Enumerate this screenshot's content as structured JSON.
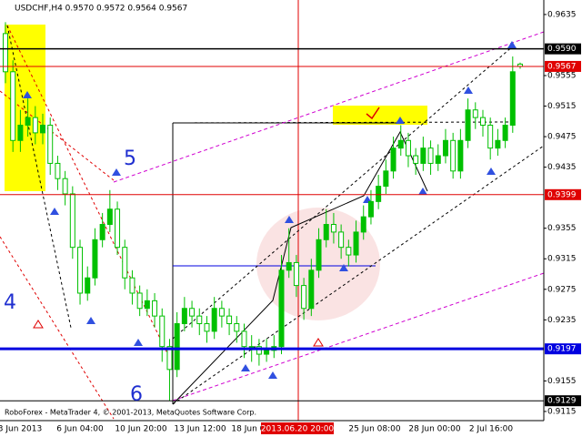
{
  "chart_data": {
    "type": "candlestick",
    "title": "USDCHF,H4  0.9570 0.9572 0.9564 0.9567",
    "footer": "RoboForex - MetaTrader 4, © 2001-2013, MetaQuotes Software Corp.",
    "annotations": [
      "5",
      "4",
      "6"
    ],
    "x_labels": [
      "3 Jun 2013",
      "6 Jun 04:00",
      "10 Jun 20:00",
      "13 Jun 12:00",
      "18 Jun 04:00",
      "2013.06.20 20:00",
      "25 Jun 08:00",
      "28 Jun 00:00",
      "2 Jul 16:00"
    ],
    "highlighted_x_label": 5,
    "open": [
      0.961,
      0.956,
      0.947,
      0.949,
      0.95,
      0.948,
      0.949,
      0.944,
      0.942,
      0.94,
      0.933,
      0.927,
      0.929,
      0.934,
      0.936,
      0.938,
      0.933,
      0.929,
      0.927,
      0.925,
      0.926,
      0.924,
      0.92,
      0.917,
      0.923,
      0.925,
      0.924,
      0.923,
      0.922,
      0.925,
      0.924,
      0.923,
      0.922,
      0.92,
      0.92,
      0.919,
      0.9195,
      0.92,
      0.93,
      0.931,
      0.928,
      0.925,
      0.93,
      0.934,
      0.936,
      0.935,
      0.933,
      0.932,
      0.935,
      0.937,
      0.939,
      0.941,
      0.943,
      0.946,
      0.947,
      0.945,
      0.944,
      0.946,
      0.944,
      0.945,
      0.947,
      0.943,
      0.947,
      0.951,
      0.95,
      0.949,
      0.946,
      0.947,
      0.949,
      0.957
    ],
    "high": [
      0.9625,
      0.9575,
      0.951,
      0.9525,
      0.9515,
      0.9505,
      0.95,
      0.945,
      0.943,
      0.941,
      0.934,
      0.9305,
      0.9355,
      0.9375,
      0.9405,
      0.939,
      0.934,
      0.93,
      0.928,
      0.9275,
      0.927,
      0.925,
      0.921,
      0.9245,
      0.9265,
      0.926,
      0.925,
      0.924,
      0.9265,
      0.926,
      0.925,
      0.924,
      0.923,
      0.9215,
      0.921,
      0.921,
      0.9215,
      0.932,
      0.9355,
      0.932,
      0.929,
      0.9315,
      0.9355,
      0.938,
      0.9375,
      0.936,
      0.934,
      0.9365,
      0.9385,
      0.9405,
      0.9425,
      0.9445,
      0.9475,
      0.949,
      0.948,
      0.946,
      0.9475,
      0.947,
      0.9465,
      0.9485,
      0.948,
      0.9485,
      0.9525,
      0.952,
      0.951,
      0.95,
      0.9485,
      0.95,
      0.958,
      0.9572
    ],
    "low": [
      0.9545,
      0.9455,
      0.9455,
      0.9475,
      0.9465,
      0.9465,
      0.9425,
      0.9405,
      0.9385,
      0.9315,
      0.9255,
      0.926,
      0.928,
      0.933,
      0.935,
      0.932,
      0.9275,
      0.9255,
      0.924,
      0.924,
      0.9225,
      0.918,
      0.9129,
      0.916,
      0.922,
      0.9225,
      0.9215,
      0.9205,
      0.921,
      0.9225,
      0.9215,
      0.9205,
      0.9185,
      0.918,
      0.9175,
      0.918,
      0.9185,
      0.919,
      0.929,
      0.9265,
      0.9235,
      0.924,
      0.929,
      0.933,
      0.9335,
      0.9315,
      0.9305,
      0.931,
      0.934,
      0.936,
      0.938,
      0.94,
      0.942,
      0.945,
      0.9435,
      0.9425,
      0.943,
      0.9425,
      0.943,
      0.944,
      0.942,
      0.942,
      0.946,
      0.9485,
      0.9475,
      0.9445,
      0.945,
      0.946,
      0.948,
      0.9564
    ],
    "close": [
      0.956,
      0.947,
      0.949,
      0.95,
      0.948,
      0.949,
      0.944,
      0.942,
      0.94,
      0.933,
      0.927,
      0.929,
      0.934,
      0.936,
      0.938,
      0.933,
      0.929,
      0.927,
      0.925,
      0.926,
      0.924,
      0.92,
      0.917,
      0.923,
      0.925,
      0.924,
      0.923,
      0.922,
      0.925,
      0.924,
      0.923,
      0.922,
      0.92,
      0.92,
      0.919,
      0.9195,
      0.92,
      0.93,
      0.931,
      0.928,
      0.925,
      0.93,
      0.934,
      0.936,
      0.935,
      0.933,
      0.932,
      0.935,
      0.937,
      0.939,
      0.941,
      0.943,
      0.946,
      0.947,
      0.945,
      0.944,
      0.946,
      0.944,
      0.945,
      0.947,
      0.943,
      0.947,
      0.951,
      0.95,
      0.949,
      0.946,
      0.947,
      0.949,
      0.956,
      0.9567
    ],
    "up_color": "#00c000",
    "down_color": "#ffffff",
    "wick_color": "#00c000",
    "ylim": [
      0.9103,
      0.9654
    ],
    "yticks": [
      0.9635,
      0.9555,
      0.9515,
      0.9475,
      0.9435,
      0.9355,
      0.9315,
      0.9275,
      0.9235,
      0.9155,
      0.9115
    ],
    "price_lines": [
      {
        "value": 0.959,
        "label": "0.9590",
        "color": "#000000",
        "width": 1.5
      },
      {
        "value": 0.9567,
        "label": "0.9567",
        "color": "#e00000",
        "width": 1
      },
      {
        "value": 0.9399,
        "label": "0.9399",
        "color": "#e00000",
        "width": 1
      },
      {
        "value": 0.9197,
        "label": "0.9197",
        "color": "#0000e0",
        "width": 3
      },
      {
        "value": 0.9129,
        "label": "0.9129",
        "color": "#000000",
        "width": 1
      }
    ]
  }
}
